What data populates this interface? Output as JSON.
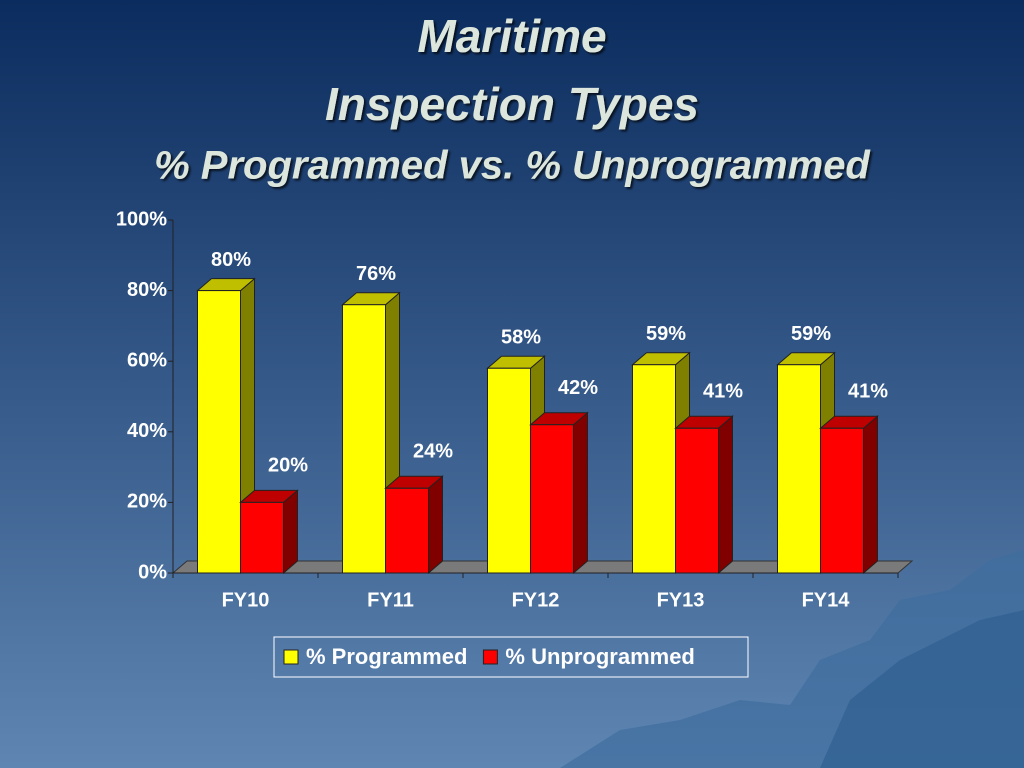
{
  "chart_data": {
    "type": "bar3d",
    "title": [
      "Maritime",
      "Inspection Types"
    ],
    "subtitle": "% Programmed vs. % Unprogrammed",
    "categories": [
      "FY10",
      "FY11",
      "FY12",
      "FY13",
      "FY14"
    ],
    "series": [
      {
        "name": "% Programmed",
        "color": "#ffff00",
        "values": [
          80,
          76,
          58,
          59,
          59
        ],
        "value_labels": [
          "80%",
          "76%",
          "58%",
          "59%",
          "59%"
        ]
      },
      {
        "name": "% Unprogrammed",
        "color": "#ff0000",
        "values": [
          20,
          24,
          42,
          41,
          41
        ],
        "value_labels": [
          "20%",
          "24%",
          "42%",
          "41%",
          "41%"
        ]
      }
    ],
    "ylim": [
      0,
      100
    ],
    "yticks": [
      {
        "value": 0,
        "label": "0%"
      },
      {
        "value": 20,
        "label": "20%"
      },
      {
        "value": 40,
        "label": "40%"
      },
      {
        "value": 60,
        "label": "60%"
      },
      {
        "value": 80,
        "label": "80%"
      },
      {
        "value": 100,
        "label": "100%"
      }
    ],
    "legend": "bottom"
  }
}
